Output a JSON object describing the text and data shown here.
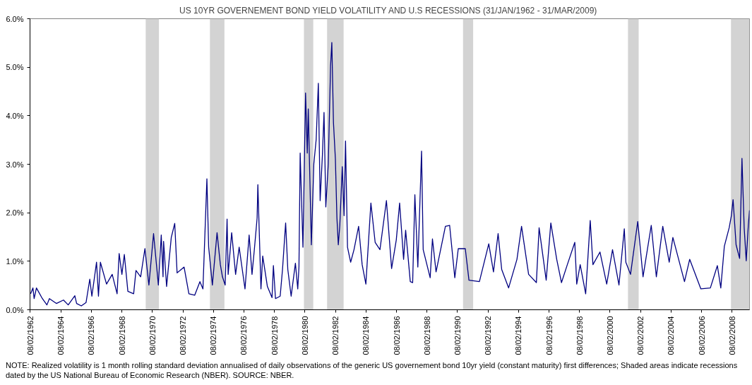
{
  "chart_data": {
    "type": "line",
    "title": "US 10YR GOVERNEMENT BOND YIELD VOLATILITY AND U.S RECESSIONS  (31/JAN/1962 - 31/MAR/2009)",
    "x": [
      "1962-02-16",
      "1962-04-11",
      "1962-05-10",
      "1962-07-04",
      "1962-11-23",
      "1963-03-12",
      "1963-05-10",
      "1963-10-24",
      "1964-04-11",
      "1964-08-03",
      "1965-01-08",
      "1965-02-20",
      "1965-06-12",
      "1965-10-04",
      "1966-01-01",
      "1966-02-20",
      "1966-04-14",
      "1966-06-12",
      "1966-07-28",
      "1966-09-12",
      "1967-02-06",
      "1967-06-22",
      "1967-10-17",
      "1967-12-05",
      "1968-02-09",
      "1968-04-07",
      "1968-07-01",
      "1968-11-16",
      "1969-01-11",
      "1969-05-03",
      "1969-08-13",
      "1969-11-16",
      "1970-03-08",
      "1970-07-01",
      "1970-09-08",
      "1970-10-21",
      "1970-11-03",
      "1971-01-14",
      "1971-05-06",
      "1971-07-28",
      "1971-09-22",
      "1972-03-08",
      "1972-07-01",
      "1972-11-16",
      "1973-03-22",
      "1973-06-02",
      "1973-09-05",
      "1973-10-17",
      "1974-01-14",
      "1974-05-06",
      "1974-07-24",
      "1974-09-12",
      "1974-11-16",
      "1975-01-01",
      "1975-01-27",
      "1975-04-21",
      "1975-07-24",
      "1975-10-17",
      "1976-03-05",
      "1976-06-12",
      "1976-08-20",
      "1976-10-17",
      "1976-12-20",
      "1977-01-07",
      "1977-03-22",
      "1977-05-03",
      "1977-08-23",
      "1977-12-12",
      "1978-01-14",
      "1978-03-05",
      "1978-06-25",
      "1978-08-20",
      "1978-11-03",
      "1978-12-25",
      "1979-03-15",
      "1979-06-25",
      "1979-08-20",
      "1979-09-18",
      "1979-10-17",
      "1979-12-22",
      "1980-02-23",
      "1980-04-04",
      "1980-04-28",
      "1980-07-11",
      "1980-09-08",
      "1980-11-03",
      "1980-12-25",
      "1981-02-06",
      "1981-04-01",
      "1981-05-10",
      "1981-06-22",
      "1981-08-20",
      "1981-10-14",
      "1981-11-13",
      "1981-12-22",
      "1982-02-06",
      "1982-03-15",
      "1982-04-17",
      "1982-05-23",
      "1982-07-21",
      "1982-09-02",
      "1982-10-07",
      "1982-11-23",
      "1983-02-06",
      "1983-04-28",
      "1983-08-16",
      "1983-11-09",
      "1984-02-06",
      "1984-06-05",
      "1984-09-15",
      "1985-01-08",
      "1985-06-12",
      "1985-10-14",
      "1986-02-03",
      "1986-04-24",
      "1986-07-28",
      "1986-09-15",
      "1987-01-04",
      "1987-03-02",
      "1987-04-24",
      "1987-07-04",
      "1987-10-01",
      "1987-11-09",
      "1988-04-24",
      "1988-06-18",
      "1988-09-12",
      "1989-04-24",
      "1989-08-03",
      "1989-12-05",
      "1990-02-26",
      "1990-08-13",
      "1990-11-09",
      "1991-07-17",
      "1992-02-26",
      "1992-06-18",
      "1992-10-07",
      "1993-01-01",
      "1993-06-15",
      "1994-01-01",
      "1994-04-21",
      "1994-10-07",
      "1995-04-11",
      "1995-06-15",
      "1995-12-02",
      "1996-03-22",
      "1996-08-10",
      "1996-12-02",
      "1997-04-21",
      "1997-10-17",
      "1997-12-02",
      "1998-02-23",
      "1998-07-04",
      "1998-10-21",
      "1998-12-25",
      "1999-06-12",
      "1999-11-20",
      "2000-04-07",
      "2000-09-08",
      "2001-01-14",
      "2001-02-20",
      "2001-06-12",
      "2001-12-02",
      "2002-04-07",
      "2002-10-21",
      "2003-02-20",
      "2003-07-24",
      "2003-12-25",
      "2004-03-22",
      "2004-12-25",
      "2005-04-28",
      "2006-01-21",
      "2006-09-05",
      "2007-02-20",
      "2007-05-13",
      "2007-08-06",
      "2007-11-30",
      "2008-01-21",
      "2008-03-02",
      "2008-05-13",
      "2008-08-06",
      "2008-10-01",
      "2008-11-23",
      "2009-01-11",
      "2009-03-02",
      "2009-03-31"
    ],
    "series": [
      {
        "color": "#000080",
        "values": [
          0.33,
          0.45,
          0.23,
          0.45,
          0.23,
          0.1,
          0.23,
          0.13,
          0.2,
          0.1,
          0.29,
          0.13,
          0.08,
          0.15,
          0.63,
          0.28,
          0.61,
          0.98,
          0.28,
          0.98,
          0.53,
          0.73,
          0.33,
          1.16,
          0.73,
          1.14,
          0.38,
          0.33,
          0.81,
          0.68,
          1.26,
          0.51,
          1.57,
          0.51,
          1.54,
          0.68,
          1.41,
          0.48,
          1.49,
          1.78,
          0.76,
          0.88,
          0.33,
          0.3,
          0.58,
          0.43,
          2.7,
          1.29,
          0.51,
          1.59,
          0.93,
          0.68,
          0.51,
          1.87,
          0.73,
          1.59,
          0.73,
          1.29,
          0.43,
          1.54,
          0.73,
          1.26,
          1.89,
          2.58,
          0.43,
          1.11,
          0.48,
          0.25,
          0.91,
          0.23,
          0.28,
          0.83,
          1.79,
          0.83,
          0.28,
          0.96,
          0.43,
          0.88,
          3.23,
          1.29,
          4.47,
          3.23,
          4.14,
          1.34,
          3.01,
          3.51,
          4.67,
          2.25,
          3.18,
          4.07,
          2.12,
          3.01,
          5.03,
          5.51,
          3.86,
          3.11,
          1.89,
          1.34,
          1.74,
          2.95,
          1.94,
          3.48,
          1.29,
          0.98,
          1.24,
          1.72,
          0.93,
          0.53,
          2.2,
          1.39,
          1.24,
          2.25,
          0.85,
          1.44,
          2.2,
          1.04,
          1.64,
          0.58,
          0.56,
          2.37,
          0.88,
          3.27,
          1.24,
          0.66,
          1.46,
          0.78,
          1.72,
          1.74,
          0.66,
          1.26,
          1.26,
          0.61,
          0.58,
          1.36,
          0.78,
          1.57,
          0.83,
          0.45,
          1.04,
          1.72,
          0.73,
          0.56,
          1.69,
          0.61,
          1.79,
          1.04,
          0.56,
          0.93,
          1.39,
          0.53,
          0.93,
          0.33,
          1.84,
          0.93,
          1.19,
          0.53,
          1.24,
          0.51,
          1.67,
          0.98,
          0.73,
          1.82,
          0.68,
          1.74,
          0.68,
          1.72,
          0.98,
          1.49,
          0.58,
          1.04,
          0.43,
          0.45,
          0.91,
          0.45,
          1.31,
          1.69,
          1.94,
          2.27,
          1.34,
          1.06,
          3.12,
          1.69,
          1.01,
          1.74,
          2.05
        ]
      }
    ],
    "xlim": [
      "1962-01-31",
      "2009-03-31"
    ],
    "xticks": [
      {
        "value": "1962-02-08",
        "label": "08/02/1962"
      },
      {
        "value": "1964-02-08",
        "label": "08/02/1964"
      },
      {
        "value": "1966-02-08",
        "label": "08/02/1966"
      },
      {
        "value": "1968-02-08",
        "label": "08/02/1968"
      },
      {
        "value": "1970-02-08",
        "label": "08/02/1970"
      },
      {
        "value": "1972-02-08",
        "label": "08/02/1972"
      },
      {
        "value": "1974-02-08",
        "label": "08/02/1974"
      },
      {
        "value": "1976-02-08",
        "label": "08/02/1976"
      },
      {
        "value": "1978-02-08",
        "label": "08/02/1978"
      },
      {
        "value": "1980-02-08",
        "label": "08/02/1980"
      },
      {
        "value": "1982-02-08",
        "label": "08/02/1982"
      },
      {
        "value": "1984-02-08",
        "label": "08/02/1984"
      },
      {
        "value": "1986-02-08",
        "label": "08/02/1986"
      },
      {
        "value": "1988-02-08",
        "label": "08/02/1988"
      },
      {
        "value": "1990-02-08",
        "label": "08/02/1990"
      },
      {
        "value": "1992-02-08",
        "label": "08/02/1992"
      },
      {
        "value": "1994-02-08",
        "label": "08/02/1994"
      },
      {
        "value": "1996-02-08",
        "label": "08/02/1996"
      },
      {
        "value": "1998-02-08",
        "label": "08/02/1998"
      },
      {
        "value": "2000-02-08",
        "label": "08/02/2000"
      },
      {
        "value": "2002-02-08",
        "label": "08/02/2002"
      },
      {
        "value": "2004-02-08",
        "label": "08/02/2004"
      },
      {
        "value": "2006-02-08",
        "label": "08/02/2006"
      },
      {
        "value": "2008-02-08",
        "label": "08/02/2008"
      }
    ],
    "ylim": [
      0,
      6
    ],
    "yticks": [
      {
        "value": 0,
        "label": "0.0%"
      },
      {
        "value": 1,
        "label": "1.0%"
      },
      {
        "value": 2,
        "label": "2.0%"
      },
      {
        "value": 3,
        "label": "3.0%"
      },
      {
        "value": 4,
        "label": "4.0%"
      },
      {
        "value": 5,
        "label": "5.0%"
      },
      {
        "value": 6,
        "label": "6.0%"
      }
    ],
    "bands": [
      {
        "axis": "x",
        "from": "1969-09-01",
        "to": "1970-07-15",
        "color": "#d3d3d3"
      },
      {
        "axis": "x",
        "from": "1973-11-16",
        "to": "1974-10-30",
        "color": "#d3d3d3"
      },
      {
        "axis": "x",
        "from": "1980-01-15",
        "to": "1980-08-25",
        "color": "#d3d3d3"
      },
      {
        "axis": "x",
        "from": "1981-07-22",
        "to": "1982-08-22",
        "color": "#d3d3d3"
      },
      {
        "axis": "x",
        "from": "1990-06-20",
        "to": "1991-02-17",
        "color": "#d3d3d3"
      },
      {
        "axis": "x",
        "from": "2001-04-12",
        "to": "2001-12-24",
        "color": "#d3d3d3"
      },
      {
        "axis": "x",
        "from": "2008-01-12",
        "to": "2009-03-31",
        "color": "#d3d3d3"
      }
    ],
    "grid": false,
    "line_style": "solid",
    "annotations": [
      "NOTE: Realized volatility is 1 month rolling standard deviation annualised of daily observations of the generic US governement bond 10yr yield (constant maturity) first differences; Shaded areas indicate recessions dated by the US National Bureau of Economic Research (NBER). SOURCE: NBER."
    ]
  }
}
